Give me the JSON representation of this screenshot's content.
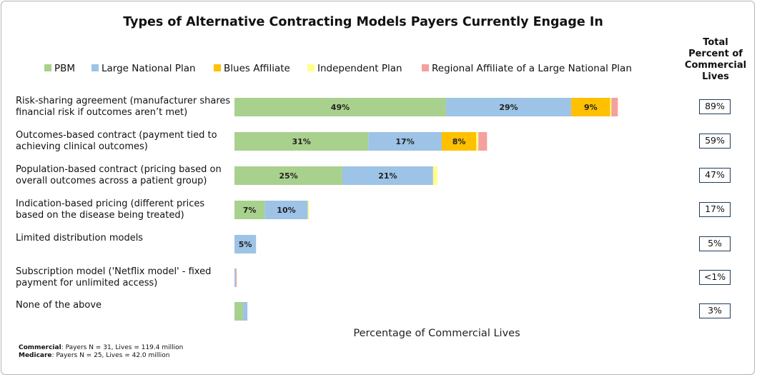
{
  "chart_data": {
    "type": "bar",
    "orientation": "horizontal",
    "stacked": true,
    "title": "Types of Alternative Contracting Models Payers Currently Engage In",
    "categories": [
      "Risk-sharing agreement (manufacturer shares financial risk if outcomes aren’t met)",
      "Outcomes-based contract (payment tied to achieving clinical outcomes)",
      "Population-based contract (pricing based on overall outcomes across a patient group)",
      "Indication-based pricing (different prices based on the disease being treated)",
      "Limited distribution models",
      "Subscription model ('Netflix model' - fixed payment for unlimited access)",
      "None of the above"
    ],
    "series": [
      {
        "name": "PBM",
        "color": "#a9d18e",
        "values": [
          49,
          31,
          25,
          7,
          null,
          null,
          2
        ],
        "value_labels": [
          "49%",
          "31%",
          "25%",
          "7%",
          null,
          null,
          null
        ]
      },
      {
        "name": "Large National Plan",
        "color": "#9dc3e6",
        "values": [
          29,
          17,
          21,
          10,
          5,
          0.3,
          1
        ],
        "value_labels": [
          "29%",
          "17%",
          "21%",
          "10%",
          "5%",
          null,
          null
        ]
      },
      {
        "name": "Blues Affiliate",
        "color": "#ffc000",
        "values": [
          9,
          8,
          null,
          null,
          null,
          null,
          null
        ],
        "value_labels": [
          "9%",
          "8%",
          null,
          null,
          null,
          null,
          null
        ]
      },
      {
        "name": "Independent Plan",
        "color": "#ffff8a",
        "values": [
          0.3,
          0.5,
          1,
          0.3,
          null,
          null,
          null
        ],
        "value_labels": [
          null,
          null,
          null,
          null,
          null,
          null,
          null
        ]
      },
      {
        "name": "Regional Affiliate of a Large National Plan",
        "color": "#f4a09c",
        "values": [
          1.5,
          2,
          null,
          null,
          null,
          0.2,
          null
        ],
        "value_labels": [
          null,
          null,
          null,
          null,
          null,
          null,
          null
        ]
      }
    ],
    "xlim": [
      0,
      100
    ],
    "x_label": "Percentage of Commercial Lives",
    "legend": "top",
    "totals_header": "Total Percent of Commercial Lives",
    "totals": [
      "89%",
      "59%",
      "47%",
      "17%",
      "5%",
      "<1%",
      "3%"
    ],
    "notes": [
      {
        "bold": "Commercial",
        "text": ": Payers  N = 31,  Lives = 119.4 million"
      },
      {
        "bold": "Medicare",
        "text": ": Payers  N = 25,  Lives = 42.0 million"
      }
    ]
  }
}
